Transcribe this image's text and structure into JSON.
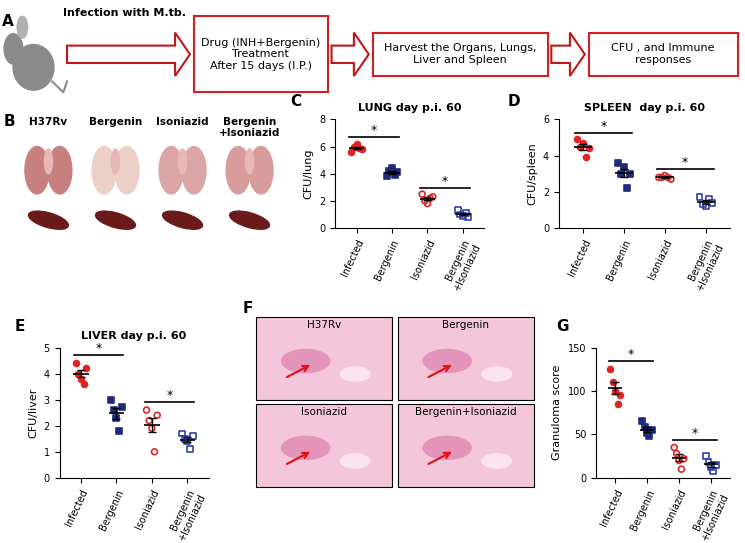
{
  "panel_A": {
    "label": "A",
    "mouse_text": "Infection with M.tb.",
    "steps": [
      "Drug (INH+Bergenin)\nTreatment\nAfter 15 days (I.P.)",
      "Harvest the Organs, Lungs,\nLiver and Spleen",
      "CFU , and Immune\nresponses"
    ]
  },
  "panel_B": {
    "label": "B",
    "columns": [
      "H37Rv",
      "Bergenin",
      "Isoniazid",
      "Bergenin\n+Isoniazid"
    ]
  },
  "panel_F": {
    "label": "F",
    "images": [
      "H37Rv",
      "Bergenin",
      "Isoniazid",
      "Bergenin+Isoniazid"
    ]
  },
  "chart_data": [
    {
      "type": "scatter",
      "label": "C",
      "title": "LUNG day p.i. 60",
      "y_label": "CFU/lung",
      "categories": [
        "Infected",
        "Bergenin",
        "Isoniazid",
        "Bergenin\n+Isoniazid"
      ],
      "values": [
        [
          5.6,
          6.0,
          6.2,
          5.9,
          5.8
        ],
        [
          3.8,
          4.2,
          4.4,
          3.9,
          4.1
        ],
        [
          2.5,
          2.0,
          1.8,
          2.2,
          2.3
        ],
        [
          1.3,
          1.0,
          0.9,
          1.1,
          0.8
        ]
      ],
      "colors": [
        "#e02424",
        "#1f2a7a",
        "#e02424",
        "#2f3fa8"
      ],
      "markers": [
        "circle",
        "square",
        "open_circle",
        "open_square"
      ],
      "ylim": [
        0,
        8
      ],
      "yticks": [
        0,
        2,
        4,
        6,
        8
      ],
      "significance": [
        {
          "pair": [
            0,
            1
          ],
          "text": "*"
        },
        {
          "pair": [
            2,
            3
          ],
          "text": "*"
        }
      ]
    },
    {
      "type": "scatter",
      "label": "D",
      "title": "SPLEEN  day p.i. 60",
      "y_label": "CFU/spleen",
      "categories": [
        "Infected",
        "Bergenin",
        "Isoniazid",
        "Bergenin\n+Isoniazid"
      ],
      "values": [
        [
          4.9,
          4.5,
          4.7,
          3.9,
          4.4
        ],
        [
          3.6,
          3.0,
          3.4,
          2.2,
          3.0
        ],
        [
          2.8,
          2.8,
          2.9,
          2.8,
          2.7
        ],
        [
          1.7,
          1.3,
          1.2,
          1.6,
          1.4
        ]
      ],
      "colors": [
        "#e02424",
        "#1f2a7a",
        "#e02424",
        "#2f3fa8"
      ],
      "markers": [
        "circle",
        "square",
        "open_circle",
        "open_square"
      ],
      "ylim": [
        0,
        6
      ],
      "yticks": [
        0,
        2,
        4,
        6
      ],
      "significance": [
        {
          "pair": [
            0,
            1
          ],
          "text": "*"
        },
        {
          "pair": [
            2,
            3
          ],
          "text": "*"
        }
      ]
    },
    {
      "type": "scatter",
      "label": "E",
      "title": "LIVER day p.i. 60",
      "y_label": "CFU/liver",
      "categories": [
        "Infected",
        "Bergenin",
        "Isoniazid",
        "Bergenin\n+Isoniazid"
      ],
      "values": [
        [
          4.4,
          4.0,
          3.8,
          3.6,
          4.2
        ],
        [
          3.0,
          2.6,
          2.3,
          1.8,
          2.7
        ],
        [
          2.6,
          2.2,
          1.9,
          1.0,
          2.4
        ],
        [
          1.7,
          1.5,
          1.4,
          1.1,
          1.6
        ]
      ],
      "colors": [
        "#e02424",
        "#1f2a7a",
        "#e02424",
        "#2f3fa8"
      ],
      "markers": [
        "circle",
        "square",
        "open_circle",
        "open_square"
      ],
      "ylim": [
        0,
        5
      ],
      "yticks": [
        0,
        1,
        2,
        3,
        4,
        5
      ],
      "significance": [
        {
          "pair": [
            0,
            1
          ],
          "text": "*"
        },
        {
          "pair": [
            2,
            3
          ],
          "text": "*"
        }
      ]
    },
    {
      "type": "scatter",
      "label": "G",
      "y_label": "Granuloma score",
      "categories": [
        "Infected",
        "Bergenin",
        "Isoniazid",
        "Bergenin\n+Isoniazid"
      ],
      "values": [
        [
          125,
          110,
          100,
          85,
          95
        ],
        [
          65,
          58,
          52,
          48,
          55
        ],
        [
          35,
          28,
          20,
          10,
          22
        ],
        [
          25,
          18,
          12,
          8,
          15
        ]
      ],
      "colors": [
        "#e02424",
        "#1f2a7a",
        "#e02424",
        "#2f3fa8"
      ],
      "markers": [
        "circle",
        "square",
        "open_circle",
        "open_square"
      ],
      "ylim": [
        0,
        150
      ],
      "yticks": [
        0,
        50,
        100,
        150
      ],
      "significance": [
        {
          "pair": [
            0,
            1
          ],
          "text": "*"
        },
        {
          "pair": [
            2,
            3
          ],
          "text": "*"
        }
      ]
    }
  ]
}
